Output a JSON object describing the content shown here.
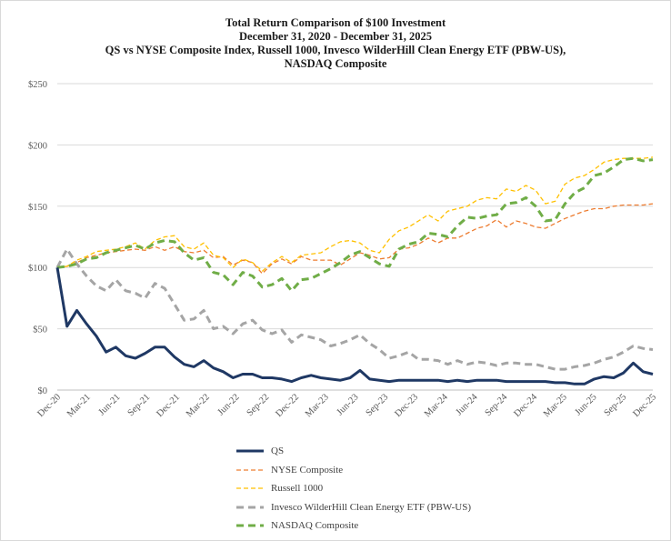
{
  "chart_data": {
    "type": "line",
    "title": [
      "Total Return Comparison of $100 Investment",
      "December 31, 2020 - December 31, 2025",
      "QS vs NYSE Composite Index, Russell 1000, Invesco WilderHill Clean Energy ETF (PBW-US),",
      "NASDAQ Composite"
    ],
    "xlabel": "",
    "ylabel": "",
    "ylim": [
      0,
      250
    ],
    "yticks": [
      "$0",
      "$50",
      "$100",
      "$150",
      "$200",
      "$250"
    ],
    "yticks_values": [
      0,
      50,
      100,
      150,
      200,
      250
    ],
    "xtick_labels": [
      "Dec-20",
      "Mar-21",
      "Jun-21",
      "Sep-21",
      "Dec-21",
      "Mar-22",
      "Jun-22",
      "Sep-22",
      "Dec-22",
      "Mar-23",
      "Jun-23",
      "Sep-23",
      "Dec-23",
      "Mar-24",
      "Jun-24",
      "Sep-24",
      "Dec-24",
      "Mar-25",
      "Jun-25",
      "Sep-25",
      "Dec-25"
    ],
    "grid": true,
    "legend_position": "bottom",
    "series": [
      {
        "name": "QS",
        "color": "#1f3864",
        "style": "solid",
        "values": [
          100,
          52,
          65,
          54,
          44,
          31,
          35,
          28,
          26,
          30,
          35,
          35,
          27,
          21,
          19,
          24,
          18,
          15,
          10,
          13,
          13,
          10,
          10,
          9,
          7,
          10,
          12,
          10,
          9,
          8,
          10,
          16,
          9,
          8,
          7,
          8,
          8,
          8,
          8,
          8,
          7,
          8,
          7,
          8,
          8,
          8,
          7,
          7,
          7,
          7,
          7,
          6,
          6,
          5,
          5,
          9,
          11,
          10,
          14,
          22,
          15,
          13
        ]
      },
      {
        "name": "NYSE Composite",
        "color": "#ed7d31",
        "style": "dashed",
        "values": [
          100,
          101,
          104,
          108,
          110,
          112,
          113,
          114,
          115,
          114,
          117,
          114,
          117,
          113,
          112,
          114,
          108,
          109,
          102,
          106,
          104,
          95,
          103,
          107,
          103,
          109,
          106,
          106,
          106,
          102,
          107,
          112,
          110,
          107,
          108,
          115,
          116,
          119,
          124,
          120,
          124,
          124,
          128,
          132,
          134,
          139,
          133,
          138,
          136,
          133,
          132,
          136,
          140,
          143,
          146,
          148,
          148,
          150,
          151,
          151,
          151,
          152
        ]
      },
      {
        "name": "Russell 1000",
        "color": "#ffc000",
        "style": "dashed",
        "values": [
          100,
          101,
          106,
          109,
          113,
          114,
          115,
          117,
          120,
          115,
          122,
          125,
          126,
          117,
          115,
          120,
          110,
          108,
          100,
          107,
          104,
          97,
          104,
          109,
          104,
          110,
          111,
          112,
          117,
          121,
          122,
          120,
          114,
          112,
          123,
          130,
          133,
          138,
          143,
          138,
          146,
          148,
          150,
          155,
          157,
          156,
          164,
          162,
          167,
          163,
          152,
          154,
          168,
          173,
          175,
          180,
          186,
          188,
          189,
          189,
          189,
          190
        ]
      },
      {
        "name": "Invesco WilderHill Clean Energy ETF (PBW-US)",
        "color": "#a5a5a5",
        "style": "dashed",
        "values": [
          100,
          115,
          103,
          93,
          85,
          81,
          90,
          81,
          79,
          75,
          87,
          83,
          70,
          57,
          58,
          65,
          50,
          52,
          46,
          54,
          57,
          49,
          46,
          49,
          39,
          45,
          43,
          41,
          36,
          38,
          41,
          45,
          38,
          33,
          26,
          28,
          31,
          25,
          25,
          24,
          21,
          24,
          21,
          23,
          22,
          20,
          22,
          22,
          21,
          21,
          19,
          17,
          17,
          19,
          20,
          22,
          25,
          27,
          31,
          36,
          34,
          33
        ]
      },
      {
        "name": "NASDAQ Composite",
        "color": "#70ad47",
        "style": "dashed",
        "values": [
          100,
          101,
          103,
          107,
          108,
          112,
          114,
          116,
          118,
          115,
          120,
          122,
          121,
          112,
          106,
          108,
          96,
          94,
          86,
          96,
          93,
          84,
          86,
          91,
          81,
          90,
          91,
          95,
          99,
          104,
          110,
          113,
          108,
          103,
          101,
          115,
          119,
          121,
          128,
          127,
          125,
          134,
          141,
          140,
          142,
          143,
          152,
          153,
          157,
          150,
          138,
          139,
          152,
          161,
          165,
          175,
          177,
          182,
          188,
          189,
          187,
          188
        ]
      }
    ]
  }
}
